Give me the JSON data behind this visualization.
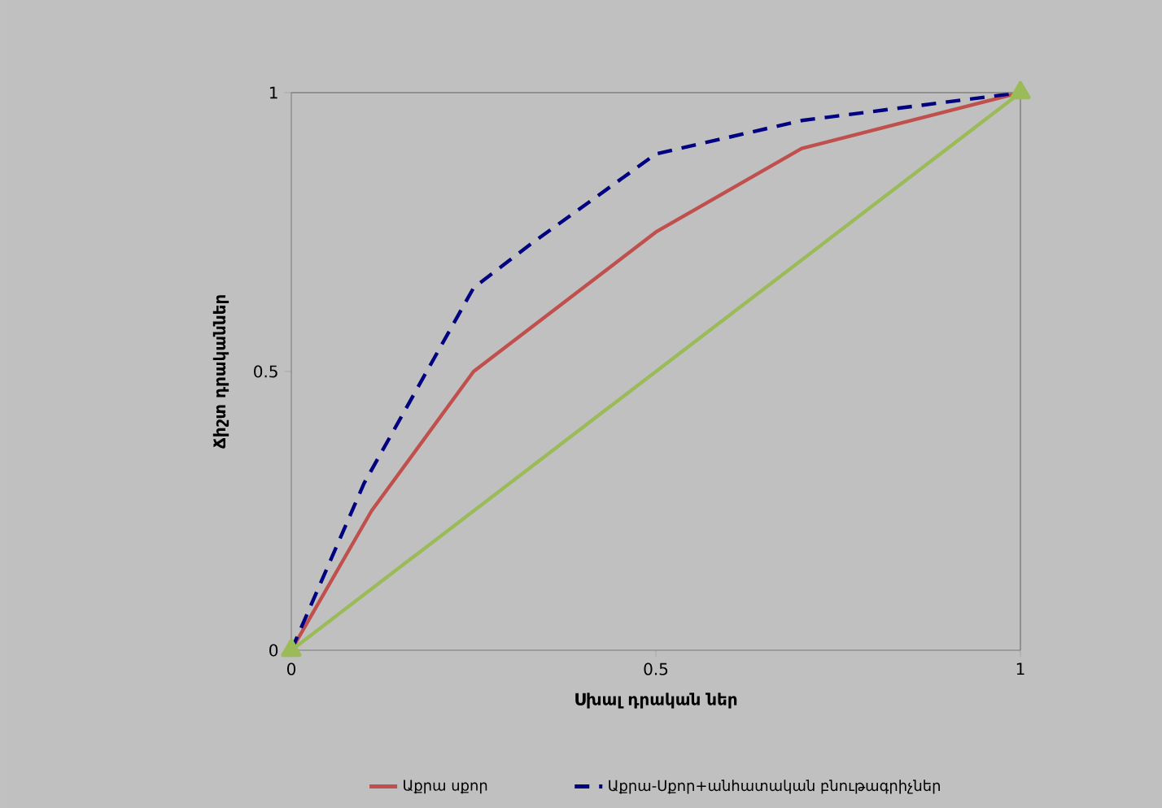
{
  "chart_data": {
    "type": "line",
    "xlabel": "Սխալ դրական ներ",
    "ylabel": "Ճիշտ դրականներ",
    "xlim": [
      0,
      1
    ],
    "ylim": [
      0,
      1
    ],
    "xticks": [
      0,
      0.5,
      1
    ],
    "yticks": [
      0,
      0.5,
      1
    ],
    "legend": "bottom",
    "series": [
      {
        "name": "Աքրա սքոր",
        "color": "#c0504d",
        "x": [
          0,
          0.11,
          0.25,
          0.5,
          0.7,
          1
        ],
        "values": [
          0,
          0.25,
          0.5,
          0.75,
          0.9,
          1
        ],
        "line_style": "solid",
        "marker": "none"
      },
      {
        "name": "Աքրա-Սքոր+անհատական բնութագրիչներ",
        "color": "#000080",
        "x": [
          0,
          0.1,
          0.25,
          0.33,
          0.5,
          0.7,
          1
        ],
        "values": [
          0,
          0.3,
          0.65,
          0.73,
          0.89,
          0.95,
          1
        ],
        "line_style": "dashed",
        "marker": "none"
      },
      {
        "color": "#9bbb59",
        "x": [
          0,
          1
        ],
        "values": [
          0,
          1
        ],
        "line_style": "solid",
        "marker": "triangle"
      }
    ]
  }
}
